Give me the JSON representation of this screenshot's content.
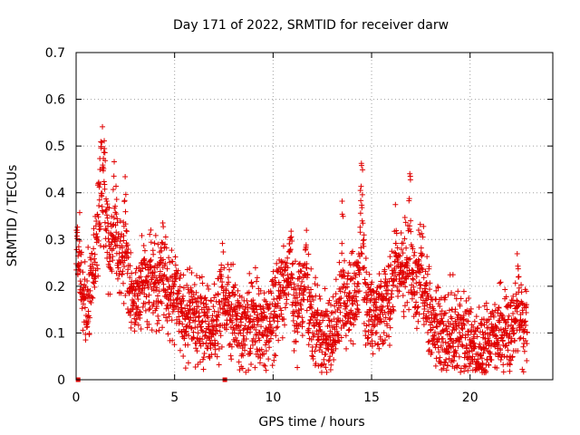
{
  "chart_data": {
    "type": "scatter",
    "title": "Day 171 of 2022, SRMTID for receiver darw",
    "xlabel": "GPS time / hours",
    "ylabel": "SRMTID / TECUs",
    "xlim": [
      0,
      24.2
    ],
    "ylim": [
      0,
      0.7
    ],
    "xticks": [
      0,
      5,
      10,
      15,
      20
    ],
    "yticks": [
      0,
      0.1,
      0.2,
      0.3,
      0.4,
      0.5,
      0.6,
      0.7
    ],
    "grid": true,
    "marker": "plus",
    "series_color": "#e00000",
    "x_start": 0.0,
    "x_end": 22.9,
    "x_step": 0.0083,
    "baseline": [
      [
        0.0,
        0.32
      ],
      [
        0.3,
        0.2
      ],
      [
        0.5,
        0.14
      ],
      [
        0.8,
        0.2
      ],
      [
        1.0,
        0.3
      ],
      [
        1.2,
        0.36
      ],
      [
        1.5,
        0.33
      ],
      [
        1.8,
        0.25
      ],
      [
        2.0,
        0.28
      ],
      [
        2.3,
        0.27
      ],
      [
        2.6,
        0.2
      ],
      [
        3.0,
        0.16
      ],
      [
        3.3,
        0.2
      ],
      [
        3.6,
        0.21
      ],
      [
        4.0,
        0.22
      ],
      [
        4.3,
        0.2
      ],
      [
        4.6,
        0.19
      ],
      [
        5.0,
        0.18
      ],
      [
        5.5,
        0.15
      ],
      [
        6.0,
        0.13
      ],
      [
        6.5,
        0.12
      ],
      [
        7.0,
        0.11
      ],
      [
        7.5,
        0.16
      ],
      [
        8.0,
        0.13
      ],
      [
        8.5,
        0.11
      ],
      [
        9.0,
        0.14
      ],
      [
        9.5,
        0.1
      ],
      [
        10.0,
        0.13
      ],
      [
        10.4,
        0.2
      ],
      [
        10.8,
        0.22
      ],
      [
        11.2,
        0.14
      ],
      [
        11.6,
        0.2
      ],
      [
        12.0,
        0.12
      ],
      [
        12.5,
        0.08
      ],
      [
        13.0,
        0.09
      ],
      [
        13.5,
        0.15
      ],
      [
        14.0,
        0.17
      ],
      [
        14.5,
        0.22
      ],
      [
        14.8,
        0.15
      ],
      [
        15.2,
        0.14
      ],
      [
        15.6,
        0.14
      ],
      [
        16.0,
        0.2
      ],
      [
        16.5,
        0.22
      ],
      [
        17.0,
        0.2
      ],
      [
        17.4,
        0.18
      ],
      [
        17.8,
        0.17
      ],
      [
        18.2,
        0.12
      ],
      [
        18.6,
        0.1
      ],
      [
        19.0,
        0.11
      ],
      [
        19.5,
        0.1
      ],
      [
        20.0,
        0.09
      ],
      [
        20.3,
        0.07
      ],
      [
        20.7,
        0.06
      ],
      [
        21.0,
        0.08
      ],
      [
        21.5,
        0.1
      ],
      [
        22.0,
        0.11
      ],
      [
        22.5,
        0.12
      ],
      [
        22.9,
        0.11
      ]
    ],
    "spikes": [
      [
        1.35,
        0.26,
        0.28
      ],
      [
        1.9,
        0.14,
        0.25
      ],
      [
        2.5,
        0.2,
        0.2
      ],
      [
        4.4,
        0.13,
        0.25
      ],
      [
        7.4,
        0.09,
        0.12
      ],
      [
        10.9,
        0.17,
        0.15
      ],
      [
        11.7,
        0.16,
        0.15
      ],
      [
        13.5,
        0.22,
        0.2
      ],
      [
        14.5,
        0.3,
        0.2
      ],
      [
        16.2,
        0.13,
        0.2
      ],
      [
        16.9,
        0.24,
        0.3
      ],
      [
        17.5,
        0.2,
        0.2
      ],
      [
        22.4,
        0.14,
        0.12
      ]
    ],
    "noise": 0.045,
    "outliers": [
      [
        0.1,
        0.0
      ],
      [
        7.55,
        0.0
      ]
    ]
  }
}
